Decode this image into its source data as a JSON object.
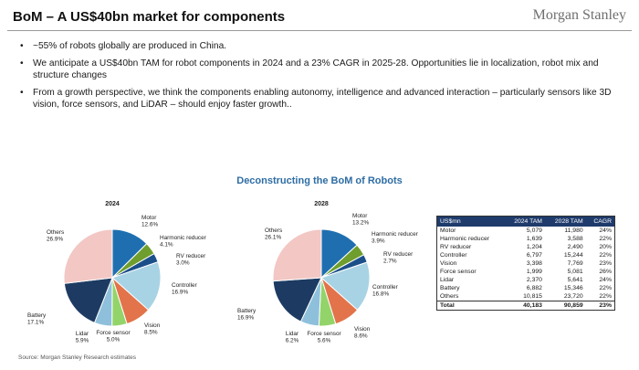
{
  "header": {
    "title": "BoM – A US$40bn market for components",
    "brand": "Morgan Stanley"
  },
  "bullets": [
    "~55% of robots globally are produced in China.",
    "We anticipate a US$40bn TAM for robot components in 2024 and a 23% CAGR in 2025-28. Opportunities lie in localization, robot mix and structure changes",
    "From a growth perspective, we think the components enabling autonomy, intelligence and advanced interaction – particularly sensors like 3D vision, force sensors, and LiDAR – should enjoy faster growth.."
  ],
  "section_title": "Deconstructing the BoM of Robots",
  "source": "Source: Morgan Stanley Research estimates",
  "colors": {
    "title_blue": "#2e6da4",
    "table_header": "#1e3b6c",
    "slices": [
      "#1f6fb0",
      "#6f9e2e",
      "#1b4f8a",
      "#a8d3e4",
      "#e2734a",
      "#93d46a",
      "#8ec0dc",
      "#1d3b62",
      "#f2c7c4",
      "#d2d2d2"
    ]
  },
  "chart_data": [
    {
      "type": "pie",
      "title": "2024",
      "categories": [
        "Motor",
        "Harmonic reducer",
        "RV reducer",
        "Controller",
        "Vision",
        "Force sensor",
        "Lidar",
        "Battery",
        "Others"
      ],
      "values": [
        12.6,
        4.1,
        3.0,
        16.9,
        8.5,
        5.0,
        5.9,
        17.1,
        26.9
      ],
      "labels": [
        "12.6%",
        "4.1%",
        "3.0%",
        "16.9%",
        "8.5%",
        "5.0%",
        "5.9%",
        "17.1%",
        "26.9%"
      ]
    },
    {
      "type": "pie",
      "title": "2028",
      "categories": [
        "Motor",
        "Harmonic reducer",
        "RV reducer",
        "Controller",
        "Vision",
        "Force sensor",
        "Lidar",
        "Battery",
        "Others"
      ],
      "values": [
        13.2,
        3.9,
        2.7,
        16.8,
        8.6,
        5.6,
        6.2,
        16.9,
        26.1
      ],
      "labels": [
        "13.2%",
        "3.9%",
        "2.7%",
        "16.8%",
        "8.6%",
        "5.6%",
        "6.2%",
        "16.9%",
        "26.1%"
      ]
    },
    {
      "type": "table",
      "columns": [
        "US$mn",
        "2024 TAM",
        "2028 TAM",
        "CAGR"
      ],
      "rows": [
        [
          "Motor",
          "5,079",
          "11,980",
          "24%"
        ],
        [
          "Harmonic reducer",
          "1,639",
          "3,588",
          "22%"
        ],
        [
          "RV reducer",
          "1,204",
          "2,490",
          "20%"
        ],
        [
          "Controller",
          "6,797",
          "15,244",
          "22%"
        ],
        [
          "Vision",
          "3,398",
          "7,769",
          "23%"
        ],
        [
          "Force sensor",
          "1,999",
          "5,081",
          "26%"
        ],
        [
          "Lidar",
          "2,370",
          "5,641",
          "24%"
        ],
        [
          "Battery",
          "6,882",
          "15,346",
          "22%"
        ],
        [
          "Others",
          "10,815",
          "23,720",
          "22%"
        ]
      ],
      "total": [
        "Total",
        "40,183",
        "90,859",
        "23%"
      ]
    }
  ]
}
